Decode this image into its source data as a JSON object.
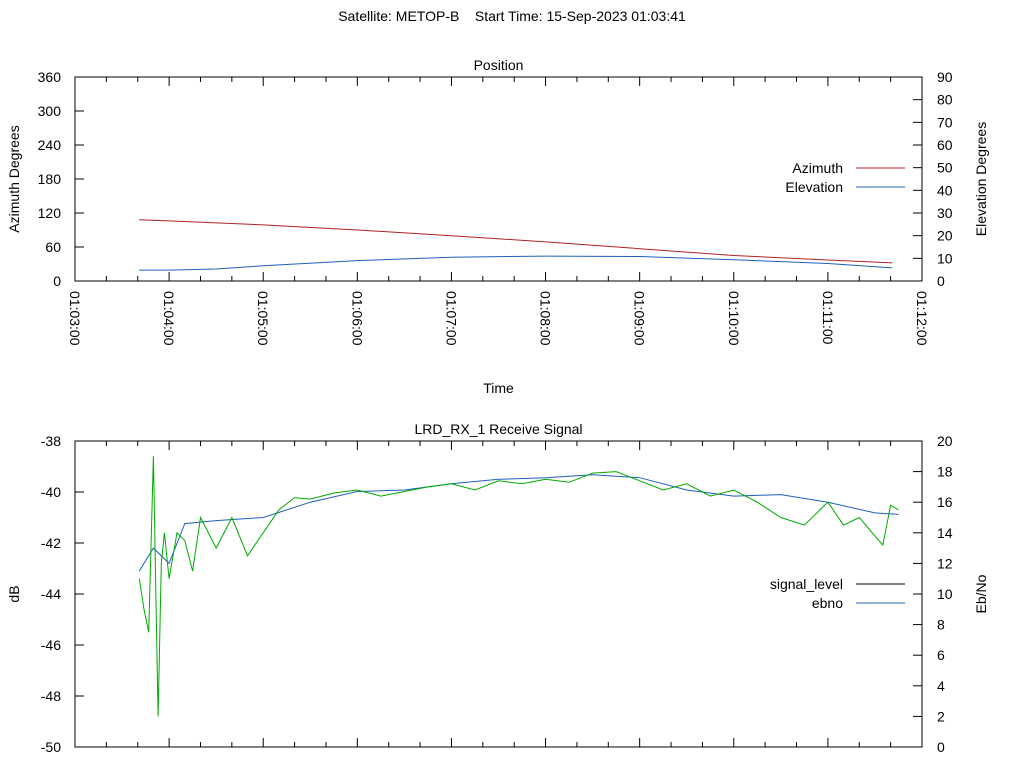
{
  "main_title": "Satellite: METOP-B    Start Time: 15-Sep-2023 01:03:41",
  "chart_data": [
    {
      "type": "line",
      "title": "Position",
      "xlabel": "Time",
      "ylabel": "Azimuth Degrees",
      "y2label": "Elevation Degrees",
      "x_ticks": [
        "01:03:00",
        "01:04:00",
        "01:05:00",
        "01:06:00",
        "01:07:00",
        "01:08:00",
        "01:09:00",
        "01:10:00",
        "01:11:00",
        "01:12:00"
      ],
      "xlim": [
        "01:03:00",
        "01:12:00"
      ],
      "ylim": [
        0,
        360
      ],
      "y_ticks": [
        0,
        60,
        120,
        180,
        240,
        300,
        360
      ],
      "y2lim": [
        0,
        90
      ],
      "y2_ticks": [
        0,
        10,
        20,
        30,
        40,
        50,
        60,
        70,
        80,
        90
      ],
      "grid": false,
      "legend_position": "right",
      "series": [
        {
          "name": "Azimuth",
          "axis": "y",
          "color": "#b22222",
          "x": [
            "01:03:41",
            "01:04:00",
            "01:05:00",
            "01:06:00",
            "01:07:00",
            "01:08:00",
            "01:09:00",
            "01:10:00",
            "01:11:00",
            "01:11:41"
          ],
          "values": [
            108,
            106,
            99,
            90,
            80,
            69,
            57,
            45,
            37,
            32
          ]
        },
        {
          "name": "Elevation",
          "axis": "y2",
          "color": "#1f5fbf",
          "x": [
            "01:03:41",
            "01:04:00",
            "01:04:30",
            "01:05:00",
            "01:06:00",
            "01:07:00",
            "01:08:00",
            "01:09:00",
            "01:10:00",
            "01:11:00",
            "01:11:41"
          ],
          "values": [
            4.8,
            4.8,
            5.3,
            6.7,
            9.0,
            10.5,
            11.0,
            10.8,
            9.4,
            7.7,
            5.8
          ]
        }
      ]
    },
    {
      "type": "line",
      "title": "LRD_RX_1 Receive Signal",
      "ylabel": "dB",
      "y2label": "Eb/No",
      "xlim": [
        "01:03:00",
        "01:12:00"
      ],
      "ylim": [
        -50,
        -38
      ],
      "y_ticks": [
        -50,
        -48,
        -46,
        -44,
        -42,
        -40,
        -38
      ],
      "y2lim": [
        0,
        20
      ],
      "y2_ticks": [
        0,
        2,
        4,
        6,
        8,
        10,
        12,
        14,
        16,
        18,
        20
      ],
      "grid": false,
      "legend_position": "right",
      "series": [
        {
          "name": "signal_level",
          "axis": "y",
          "color": "#000000",
          "x": [],
          "values": []
        },
        {
          "name": "ebno",
          "axis": "y2",
          "color": "#1f5fbf",
          "x": [
            "01:03:41",
            "01:03:50",
            "01:04:00",
            "01:04:10",
            "01:04:30",
            "01:05:00",
            "01:05:30",
            "01:06:00",
            "01:06:30",
            "01:07:00",
            "01:07:30",
            "01:08:00",
            "01:08:30",
            "01:09:00",
            "01:09:30",
            "01:10:00",
            "01:10:30",
            "01:11:00",
            "01:11:30",
            "01:11:45"
          ],
          "values": [
            11.5,
            13.0,
            12.0,
            14.6,
            14.8,
            15.0,
            16.0,
            16.7,
            16.8,
            17.2,
            17.5,
            17.6,
            17.8,
            17.6,
            16.8,
            16.4,
            16.5,
            16.0,
            15.3,
            15.2
          ]
        },
        {
          "name": "",
          "axis": "y2",
          "color": "#00aa00",
          "x": [
            "01:03:41",
            "01:03:44",
            "01:03:47",
            "01:03:50",
            "01:03:53",
            "01:03:55",
            "01:03:57",
            "01:04:00",
            "01:04:05",
            "01:04:10",
            "01:04:15",
            "01:04:20",
            "01:04:30",
            "01:04:40",
            "01:04:50",
            "01:05:00",
            "01:05:10",
            "01:05:20",
            "01:05:30",
            "01:05:45",
            "01:06:00",
            "01:06:15",
            "01:06:30",
            "01:06:45",
            "01:07:00",
            "01:07:15",
            "01:07:30",
            "01:07:45",
            "01:08:00",
            "01:08:15",
            "01:08:30",
            "01:08:45",
            "01:09:00",
            "01:09:15",
            "01:09:30",
            "01:09:45",
            "01:10:00",
            "01:10:15",
            "01:10:30",
            "01:10:45",
            "01:11:00",
            "01:11:10",
            "01:11:20",
            "01:11:30",
            "01:11:35",
            "01:11:40",
            "01:11:45"
          ],
          "values": [
            11.0,
            9.0,
            7.5,
            19.0,
            2.0,
            12.0,
            14.0,
            11.0,
            14.0,
            13.5,
            11.5,
            15.0,
            13.0,
            15.0,
            12.5,
            14.0,
            15.5,
            16.3,
            16.2,
            16.6,
            16.8,
            16.4,
            16.7,
            17.0,
            17.2,
            16.8,
            17.4,
            17.2,
            17.5,
            17.3,
            17.9,
            18.0,
            17.4,
            16.8,
            17.2,
            16.4,
            16.8,
            16.0,
            15.0,
            14.5,
            16.0,
            14.5,
            15.0,
            13.8,
            13.2,
            15.8,
            15.5
          ]
        }
      ]
    }
  ]
}
